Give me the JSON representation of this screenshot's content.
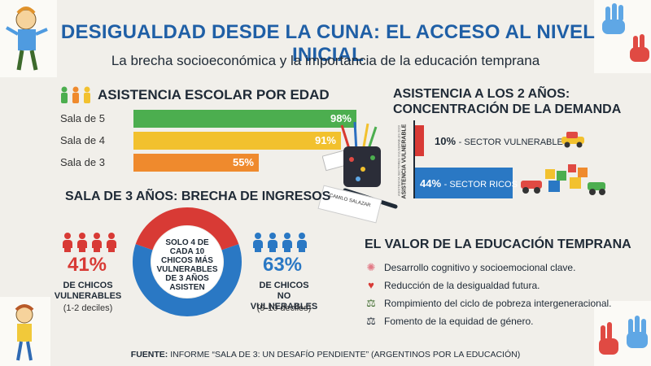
{
  "title": "DESIGUALDAD DESDE LA CUNA: EL ACCESO AL NIVEL INICIAL",
  "subtitle": "La brecha socioeconómica y la importancia de la educación temprana",
  "attendance": {
    "heading": "ASISTENCIA ESCOLAR POR EDAD",
    "rows": [
      {
        "label": "Sala de 5",
        "value": "98%",
        "color": "#4cae4f"
      },
      {
        "label": "Sala de 4",
        "value": "91%",
        "color": "#f2c12e"
      },
      {
        "label": "Sala de 3",
        "value": "55%",
        "color": "#ef8a2d"
      }
    ]
  },
  "two_years": {
    "heading_line1": "ASISTENCIA A LOS 2 AÑOS:",
    "heading_line2": "CONCENTRACIÓN DE LA DEMANDA",
    "axis_label": "ASISTENCIA VULNERABLE",
    "axis_label_small": "ASISTENCIA SECTORES VULNERABLES 2023",
    "vulnerable": {
      "pct": "10%",
      "label": "- SECTOR VULNERABLE",
      "color": "#d83a35"
    },
    "rich": {
      "pct": "44%",
      "label": "- SECTOR RICOS",
      "color": "#2a78c4"
    }
  },
  "pencil_label": "CAMILO SALAZAR",
  "income_gap": {
    "heading": "SALA DE 3 AÑOS: BRECHA DE INGRESOS",
    "donut_text": "SOLO 4 DE CADA 10 CHICOS MÁS VULNERABLES DE 3 AÑOS ASISTEN",
    "left": {
      "pct": "41%",
      "caption": "DE CHICOS VULNERABLES",
      "sub": "(1-2 deciles)",
      "color": "#d83a35"
    },
    "right": {
      "pct": "63%",
      "caption_line1": "DE CHICOS",
      "caption_line2": "NO VULNERABLES",
      "sub": "(9-10 deciles)",
      "color": "#2a78c4"
    }
  },
  "value": {
    "heading": "EL VALOR DE LA EDUCACIÓN TEMPRANA",
    "items": [
      {
        "icon": "brain-icon",
        "text": "Desarrollo cognitivo y socioemocional clave."
      },
      {
        "icon": "heart-icon",
        "text": "Reducción de la desigualdad futura."
      },
      {
        "icon": "scale-icon",
        "text": "Rompimiento del ciclo de pobreza intergeneracional."
      },
      {
        "icon": "balance-icon",
        "text": "Fomento de la equidad de género."
      }
    ]
  },
  "footer": {
    "label": "FUENTE:",
    "text": "INFORME “SALA DE 3: UN DESAFÍO PENDIENTE” (ARGENTINOS POR LA EDUCACIÓN)"
  },
  "chart_data": [
    {
      "type": "bar",
      "title": "ASISTENCIA ESCOLAR POR EDAD",
      "categories": [
        "Sala de 5",
        "Sala de 4",
        "Sala de 3"
      ],
      "values": [
        98,
        91,
        55
      ]
    },
    {
      "type": "bar",
      "title": "ASISTENCIA A LOS 2 AÑOS: CONCENTRACIÓN DE LA DEMANDA",
      "categories": [
        "SECTOR VULNERABLE",
        "SECTOR RICOS"
      ],
      "values": [
        10,
        44
      ]
    },
    {
      "type": "pie",
      "title": "SALA DE 3 AÑOS: BRECHA DE INGRESOS",
      "categories": [
        "CHICOS VULNERABLES",
        "CHICOS NO VULNERABLES"
      ],
      "values": [
        41,
        63
      ]
    }
  ]
}
